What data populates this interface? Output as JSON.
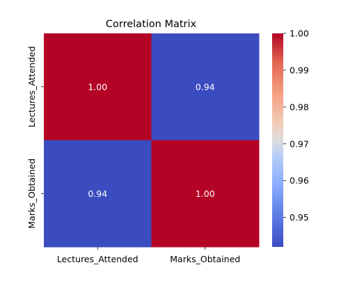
{
  "chart_data": {
    "type": "heatmap",
    "title": "Correlation Matrix",
    "rows": [
      "Lectures_Attended",
      "Marks_Obtained"
    ],
    "columns": [
      "Lectures_Attended",
      "Marks_Obtained"
    ],
    "values": [
      [
        1.0,
        0.94
      ],
      [
        0.94,
        1.0
      ]
    ],
    "cell_labels": [
      [
        "1.00",
        "0.94"
      ],
      [
        "0.94",
        "1.00"
      ]
    ],
    "colormap": "coolwarm",
    "colorbar": {
      "range": [
        0.942,
        1.0
      ],
      "ticks": [
        0.95,
        0.96,
        0.97,
        0.98,
        0.99,
        1.0
      ],
      "tick_labels": [
        "0.95",
        "0.96",
        "0.97",
        "0.98",
        "0.99",
        "1.00"
      ],
      "colors": {
        "low": "#3b4cc0",
        "mid": "#dddddd",
        "high": "#b40426"
      }
    },
    "annotation_color": "#ffffff"
  }
}
